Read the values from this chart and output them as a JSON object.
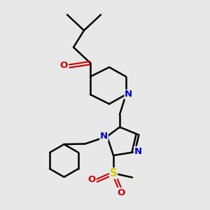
{
  "bg_color": "#e8e8e8",
  "bond_color": "#000000",
  "bond_width": 1.8,
  "n_color": "#0000cc",
  "o_color": "#cc0000",
  "s_color": "#cccc00",
  "font_size": 8.5,
  "xlim": [
    0,
    10
  ],
  "ylim": [
    0,
    10
  ]
}
